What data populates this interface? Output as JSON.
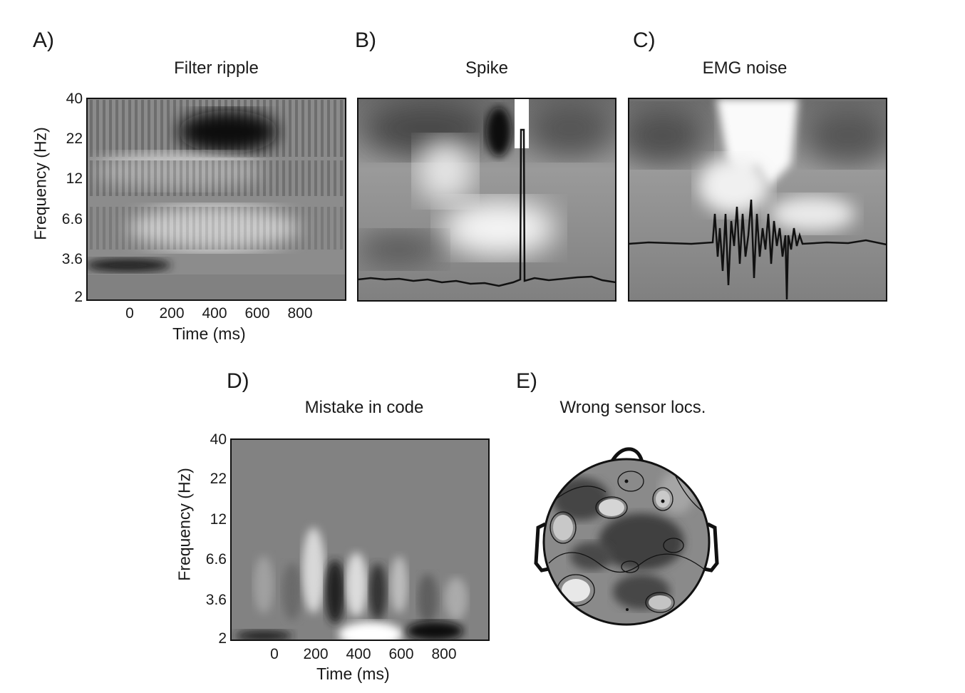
{
  "panels": {
    "a": {
      "letter": "A)",
      "title": "Filter ripple"
    },
    "b": {
      "letter": "B)",
      "title": "Spike"
    },
    "c": {
      "letter": "C)",
      "title": "EMG noise"
    },
    "d": {
      "letter": "D)",
      "title": "Mistake in code"
    },
    "e": {
      "letter": "E)",
      "title": "Wrong sensor locs."
    }
  },
  "axes": {
    "ylabel": "Frequency (Hz)",
    "xlabel": "Time (ms)",
    "yticks": [
      "40",
      "22",
      "12",
      "6.6",
      "3.6",
      "2"
    ],
    "xticks": [
      "0",
      "200",
      "400",
      "600",
      "800"
    ]
  },
  "chart_data": [
    {
      "type": "heatmap",
      "title": "Filter ripple",
      "xlabel": "Time (ms)",
      "ylabel": "Frequency (Hz)",
      "xticks": [
        0,
        200,
        400,
        600,
        800
      ],
      "yticks": [
        40,
        22,
        12,
        6.6,
        3.6,
        2
      ],
      "yscale": "log",
      "colormap": "grayscale"
    },
    {
      "type": "heatmap",
      "title": "Spike",
      "colormap": "grayscale",
      "overlay": "time-domain trace with single spike"
    },
    {
      "type": "heatmap",
      "title": "EMG noise",
      "colormap": "grayscale",
      "overlay": "time-domain trace with high-frequency burst"
    },
    {
      "type": "heatmap",
      "title": "Mistake in code",
      "xlabel": "Time (ms)",
      "ylabel": "Frequency (Hz)",
      "xticks": [
        0,
        200,
        400,
        600,
        800
      ],
      "yticks": [
        40,
        22,
        12,
        6.6,
        3.6,
        2
      ],
      "yscale": "log",
      "colormap": "grayscale"
    },
    {
      "type": "heatmap",
      "title": "Wrong sensor locs.",
      "subtype": "scalp topographic map",
      "colormap": "grayscale"
    }
  ]
}
